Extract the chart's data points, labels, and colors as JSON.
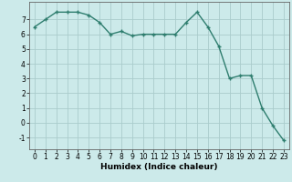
{
  "x": [
    0,
    1,
    2,
    3,
    4,
    5,
    6,
    7,
    8,
    9,
    10,
    11,
    12,
    13,
    14,
    15,
    16,
    17,
    18,
    19,
    20,
    21,
    22,
    23
  ],
  "y": [
    6.5,
    7.0,
    7.5,
    7.5,
    7.5,
    7.3,
    6.8,
    6.0,
    6.2,
    5.9,
    6.0,
    6.0,
    6.0,
    6.0,
    6.8,
    7.5,
    6.5,
    5.2,
    3.0,
    3.2,
    3.2,
    1.0,
    -0.2,
    -1.2
  ],
  "line_color": "#2e7d6e",
  "marker": "+",
  "markersize": 3,
  "linewidth": 1.0,
  "markeredgewidth": 1.0,
  "xlabel": "Humidex (Indice chaleur)",
  "background_color": "#cceaea",
  "grid_color": "#aacccc",
  "xlim": [
    -0.5,
    23.5
  ],
  "ylim": [
    -1.8,
    8.2
  ],
  "yticks": [
    -1,
    0,
    1,
    2,
    3,
    4,
    5,
    6,
    7
  ],
  "xticks": [
    0,
    1,
    2,
    3,
    4,
    5,
    6,
    7,
    8,
    9,
    10,
    11,
    12,
    13,
    14,
    15,
    16,
    17,
    18,
    19,
    20,
    21,
    22,
    23
  ],
  "tick_fontsize": 5.5,
  "xlabel_fontsize": 6.5,
  "spine_color": "#666666"
}
